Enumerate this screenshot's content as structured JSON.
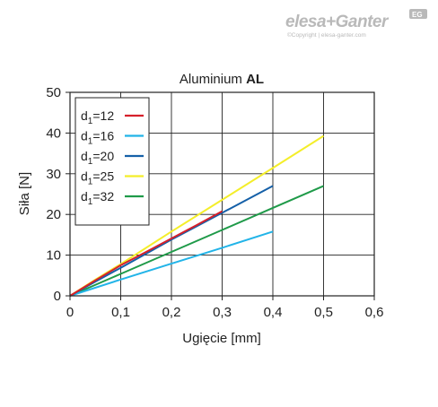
{
  "brand": {
    "name": "elesa+Ganter",
    "badge": "EG",
    "copyright": "©Copyright | elesa-ganter.com"
  },
  "chart_data": {
    "type": "line",
    "title_prefix": "Aluminium ",
    "title_bold": "AL",
    "xlabel": "Ugięcie [mm]",
    "ylabel": "Siła [N]",
    "xlim": [
      0,
      0.6
    ],
    "ylim": [
      0,
      50
    ],
    "xticks": [
      "0",
      "0,1",
      "0,2",
      "0,3",
      "0,4",
      "0,5",
      "0,6"
    ],
    "yticks": [
      "0",
      "10",
      "20",
      "30",
      "40",
      "50"
    ],
    "grid": true,
    "legend_position": "top-left",
    "series": [
      {
        "name_main": "d",
        "name_sub": "1",
        "name_rest": "=12",
        "color": "#d6202b",
        "x": [
          0,
          0.05,
          0.1,
          0.15,
          0.2,
          0.25,
          0.3
        ],
        "y": [
          0,
          3.8,
          7.5,
          10.8,
          14.1,
          17.4,
          20.8
        ]
      },
      {
        "name_main": "d",
        "name_sub": "1",
        "name_rest": "=16",
        "color": "#22b4e8",
        "x": [
          0,
          0.1,
          0.2,
          0.3,
          0.4
        ],
        "y": [
          0,
          4.0,
          7.9,
          11.8,
          15.8
        ]
      },
      {
        "name_main": "d",
        "name_sub": "1",
        "name_rest": "=20",
        "color": "#1560a8",
        "x": [
          0,
          0.05,
          0.1,
          0.2,
          0.3,
          0.4
        ],
        "y": [
          0,
          3.5,
          6.9,
          13.8,
          20.4,
          27.0
        ]
      },
      {
        "name_main": "d",
        "name_sub": "1",
        "name_rest": "=25",
        "color": "#f4ee2a",
        "x": [
          0,
          0.05,
          0.1,
          0.2,
          0.3,
          0.4,
          0.5
        ],
        "y": [
          0,
          4.0,
          7.8,
          15.8,
          23.6,
          31.4,
          39.3
        ]
      },
      {
        "name_main": "d",
        "name_sub": "1",
        "name_rest": "=32",
        "color": "#1f9a49",
        "x": [
          0,
          0.1,
          0.2,
          0.3,
          0.4,
          0.5
        ],
        "y": [
          0,
          5.4,
          10.8,
          16.2,
          21.6,
          27.0
        ]
      }
    ]
  }
}
